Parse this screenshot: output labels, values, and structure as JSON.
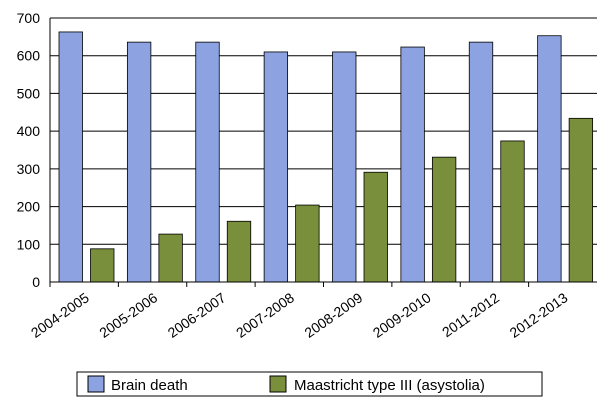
{
  "chart_data": {
    "type": "bar",
    "categories": [
      "2004-2005",
      "2005-2006",
      "2006-2007",
      "2007-2008",
      "2008-2009",
      "2009-2010",
      "2011-2012",
      "2012-2013"
    ],
    "series": [
      {
        "name": "Brain death",
        "values": [
          663,
          636,
          636,
          610,
          610,
          623,
          636,
          653
        ],
        "color": "#8da2e0"
      },
      {
        "name": "Maastricht type III (asystolia)",
        "values": [
          88,
          127,
          161,
          204,
          291,
          331,
          374,
          434
        ],
        "color": "#7a8f3c"
      }
    ],
    "ylim": [
      0,
      700
    ],
    "yticks": [
      0,
      100,
      200,
      300,
      400,
      500,
      600,
      700
    ],
    "grid": true,
    "legend": "bottom"
  }
}
